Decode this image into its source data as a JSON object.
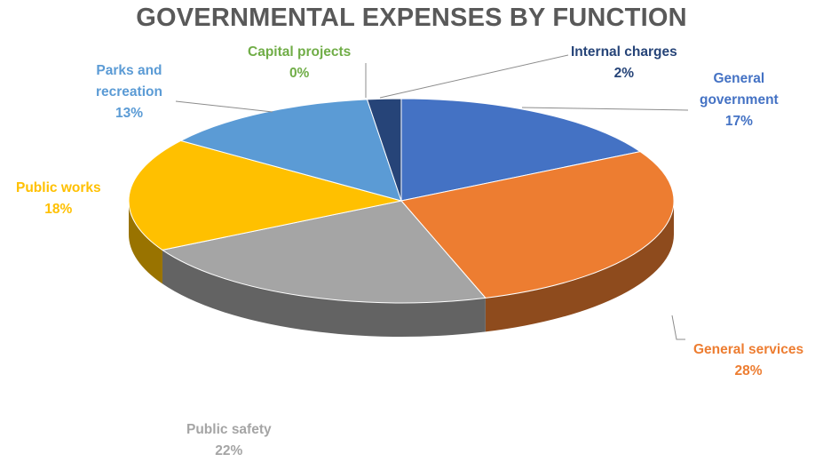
{
  "chart_data": {
    "type": "pie",
    "title": "GOVERNMENTAL EXPENSES BY FUNCTION",
    "start_angle_deg": 0,
    "three_d": true,
    "slices": [
      {
        "label": "General government",
        "lines": [
          "General",
          "government"
        ],
        "value": 17,
        "percent_label": "17%",
        "color": "#4472C4"
      },
      {
        "label": "General services",
        "lines": [
          "General services"
        ],
        "value": 28,
        "percent_label": "28%",
        "color": "#ED7D31"
      },
      {
        "label": "Public safety",
        "lines": [
          "Public safety"
        ],
        "value": 22,
        "percent_label": "22%",
        "color": "#A5A5A5"
      },
      {
        "label": "Public works",
        "lines": [
          "Public works"
        ],
        "value": 18,
        "percent_label": "18%",
        "color": "#FFC000"
      },
      {
        "label": "Parks and recreation",
        "lines": [
          "Parks and",
          "recreation"
        ],
        "value": 13,
        "percent_label": "13%",
        "color": "#5B9BD5"
      },
      {
        "label": "Capital projects",
        "lines": [
          "Capital projects"
        ],
        "value": 0,
        "percent_label": "0%",
        "color": "#70AD47"
      },
      {
        "label": "Internal charges",
        "lines": [
          "Internal charges"
        ],
        "value": 2,
        "percent_label": "2%",
        "color": "#264478"
      }
    ]
  }
}
